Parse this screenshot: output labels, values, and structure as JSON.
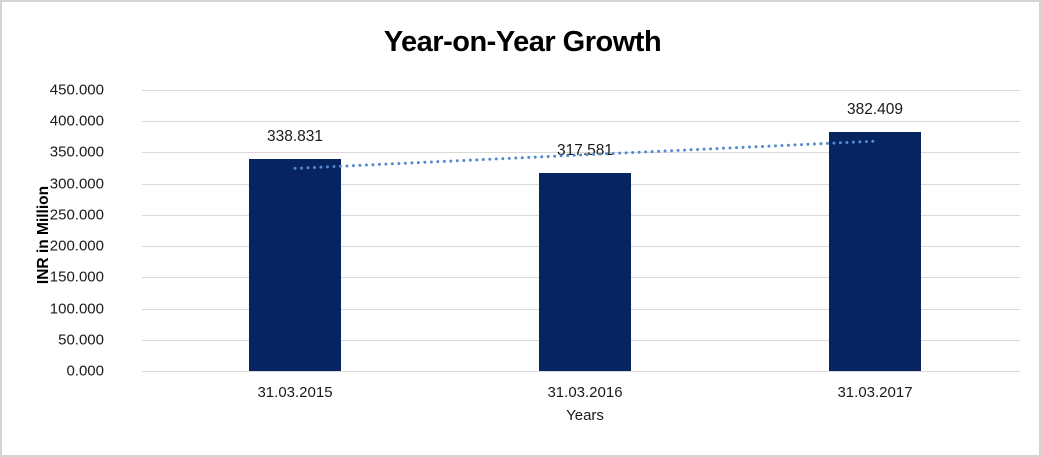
{
  "chart_data": {
    "type": "bar",
    "title": "Year-on-Year Growth",
    "xlabel": "Years",
    "ylabel": "INR in Million",
    "categories": [
      "31.03.2015",
      "31.03.2016",
      "31.03.2017"
    ],
    "values": [
      338.831,
      317.581,
      382.409
    ],
    "value_labels": [
      "338.831",
      "317.581",
      "382.409"
    ],
    "ylim": [
      0,
      450
    ],
    "ytick_step": 50,
    "ytick_labels": [
      "0.000",
      "50.000",
      "100.000",
      "150.000",
      "200.000",
      "250.000",
      "300.000",
      "350.000",
      "400.000",
      "450.000"
    ],
    "grid": true,
    "legend": false,
    "trendline": {
      "type": "linear",
      "style": "dotted",
      "color": "#5589ce",
      "endpoint_values": [
        324.485,
        368.063
      ]
    },
    "colors": {
      "bar": "#052460",
      "gridline": "#d9d9d9",
      "text": "#1a1a1a",
      "background": "#ffffff",
      "frame_border": "#d4d4d4"
    }
  }
}
